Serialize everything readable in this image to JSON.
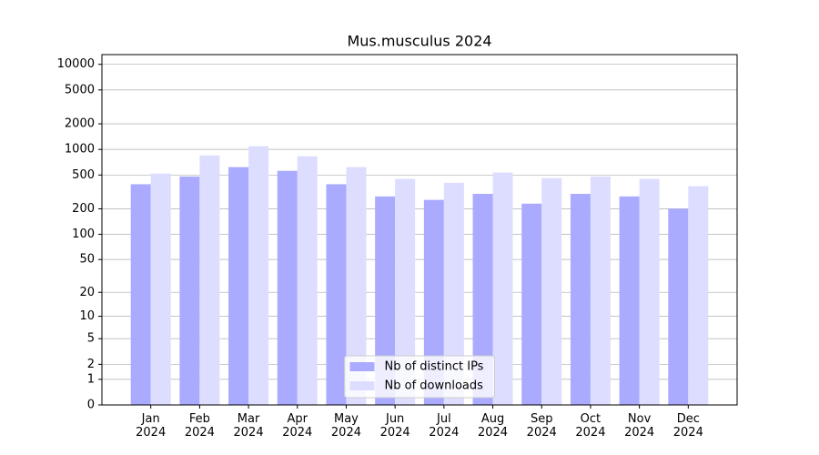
{
  "chart_data": {
    "type": "bar",
    "title": "Mus.musculus 2024",
    "categories": [
      "Jan 2024",
      "Feb 2024",
      "Mar 2024",
      "Apr 2024",
      "May 2024",
      "Jun 2024",
      "Jul 2024",
      "Aug 2024",
      "Sep 2024",
      "Oct 2024",
      "Nov 2024",
      "Dec 2024"
    ],
    "series": [
      {
        "name": "Nb of distinct IPs",
        "color": "#aaaaff",
        "values": [
          390,
          480,
          620,
          560,
          390,
          280,
          255,
          300,
          230,
          300,
          280,
          200
        ]
      },
      {
        "name": "Nb of downloads",
        "color": "#ddddff",
        "values": [
          520,
          850,
          1090,
          830,
          620,
          450,
          405,
          535,
          460,
          480,
          450,
          370
        ]
      }
    ],
    "yscale": "log1p",
    "ylim": [
      0,
      13000
    ],
    "yticks": [
      0,
      1,
      2,
      5,
      10,
      20,
      50,
      100,
      200,
      500,
      1000,
      2000,
      5000,
      10000
    ],
    "grid": true,
    "legend": "lower center"
  }
}
